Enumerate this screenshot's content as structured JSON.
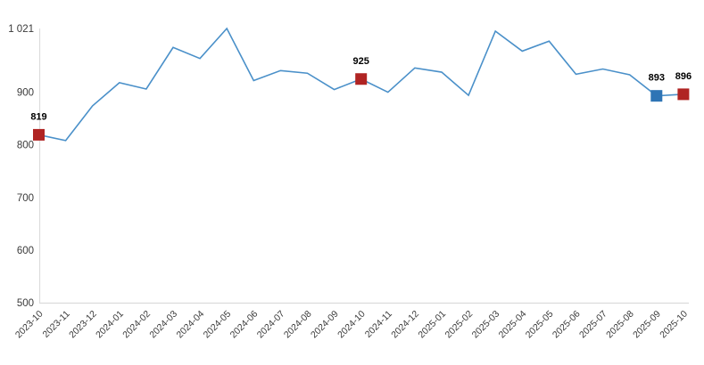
{
  "chart_data": {
    "type": "line",
    "title": "",
    "xlabel": "",
    "ylabel": "",
    "grid": false,
    "legend_position": "none",
    "x": [
      "2023-10",
      "2023-11",
      "2023-12",
      "2024-01",
      "2024-02",
      "2024-03",
      "2024-04",
      "2024-05",
      "2024-06",
      "2024-07",
      "2024-08",
      "2024-09",
      "2024-10",
      "2024-11",
      "2024-12",
      "2025-01",
      "2025-02",
      "2025-03",
      "2025-04",
      "2025-05",
      "2025-06",
      "2025-07",
      "2025-08",
      "2025-09",
      "2025-10"
    ],
    "values": [
      819,
      808,
      874,
      918,
      906,
      985,
      964,
      1021,
      922,
      941,
      936,
      905,
      925,
      900,
      946,
      938,
      894,
      1016,
      978,
      997,
      934,
      944,
      933,
      893,
      896
    ],
    "ylim": [
      500,
      1021
    ],
    "yticks": [
      {
        "label": "1 021",
        "value": 1021
      },
      {
        "label": "900",
        "value": 900
      },
      {
        "label": "800",
        "value": 800
      },
      {
        "label": "700",
        "value": 700
      },
      {
        "label": "600",
        "value": 600
      },
      {
        "label": "500",
        "value": 500
      }
    ],
    "highlighted_points": [
      {
        "x": "2023-10",
        "index": 0,
        "value": 819,
        "label": "819",
        "color": "#b02423",
        "marker": "square"
      },
      {
        "x": "2024-10",
        "index": 12,
        "value": 925,
        "label": "925",
        "color": "#b02423",
        "marker": "square"
      },
      {
        "x": "2025-09",
        "index": 23,
        "value": 893,
        "label": "893",
        "color": "#2e74b5",
        "marker": "square"
      },
      {
        "x": "2025-10",
        "index": 24,
        "value": 896,
        "label": "896",
        "color": "#b02423",
        "marker": "square"
      }
    ],
    "colors": {
      "line": "#4a90c9",
      "marker_red": "#b02423",
      "marker_blue": "#2e74b5",
      "axis": "#dcdcdc",
      "tick_text": "#3a3a3a",
      "value_label_text": "#000000",
      "background": "#ffffff"
    }
  }
}
